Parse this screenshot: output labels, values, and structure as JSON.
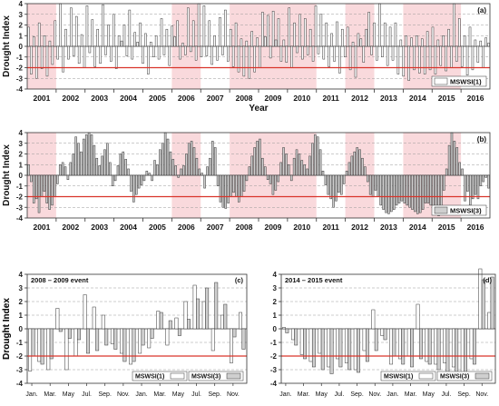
{
  "colors": {
    "shade": "#f9d9dc",
    "threshold": "#d9342b",
    "fill_series1": "#ffffff",
    "fill_series3": "#cfcfcf",
    "stroke": "#333333",
    "grid": "#9a9a9a"
  },
  "ylabel": "Drought Index",
  "xlabel": "Year",
  "chart_data": [
    {
      "id": "a",
      "type": "bar",
      "panel_tag": "(a)",
      "series_name": "MSWSI(1)",
      "fill": "white",
      "xlabel": "Year",
      "ylabel": "Drought Index",
      "ylim": [
        -4,
        4
      ],
      "yticks": [
        4,
        3,
        2,
        1,
        0,
        -1,
        -2,
        -3,
        -4
      ],
      "threshold": -2,
      "grid": true,
      "legend_position": "bottom-right",
      "year_labels": [
        "2001",
        "2002",
        "2003",
        "2004",
        "2005",
        "2006",
        "2007",
        "2008",
        "2009",
        "2010",
        "2011",
        "2012",
        "2013",
        "2014",
        "2015",
        "2016"
      ],
      "shaded_year_spans": [
        [
          0,
          1
        ],
        [
          5,
          6
        ],
        [
          7,
          10
        ],
        [
          11,
          12
        ],
        [
          13,
          15
        ]
      ],
      "values": [
        1.8,
        -2.6,
        0.9,
        -3.0,
        2.2,
        -2.1,
        1.0,
        -2.8,
        0.5,
        -1.7,
        2.4,
        -1.2,
        4.0,
        -2.4,
        1.6,
        -1.2,
        3.6,
        -0.9,
        2.8,
        -1.6,
        1.1,
        -2.0,
        3.8,
        -0.6,
        2.5,
        -1.9,
        1.6,
        -1.6,
        3.9,
        -0.8,
        2.0,
        -1.4,
        3.0,
        -2.1,
        1.0,
        0.5,
        2.0,
        -0.9,
        3.4,
        -1.2,
        1.3,
        0.4,
        2.2,
        -1.6,
        1.2,
        -2.6,
        0.4,
        -1.0,
        1.0,
        -1.2,
        2.6,
        -0.8,
        1.6,
        -1.8,
        1.9,
        0.9,
        2.4,
        -1.2,
        0.3,
        -0.8,
        3.6,
        -0.5,
        2.4,
        -1.3,
        4.0,
        -1.0,
        3.8,
        -0.9,
        2.4,
        -1.7,
        1.0,
        -1.3,
        2.7,
        -0.8,
        3.4,
        -1.4,
        1.6,
        -1.9,
        2.2,
        -2.4,
        0.7,
        -2.8,
        0.5,
        -3.0,
        1.4,
        -2.4,
        0.8,
        -2.0,
        3.2,
        0.9,
        2.9,
        -1.1,
        3.3,
        0.6,
        2.6,
        -1.4,
        0.6,
        -1.5,
        3.6,
        -2.0,
        2.2,
        -0.6,
        3.0,
        -1.2,
        2.6,
        -0.8,
        1.6,
        -1.4,
        3.8,
        -0.7,
        3.0,
        -1.2,
        2.2,
        -1.9,
        1.2,
        -1.4,
        2.3,
        -2.5,
        1.6,
        -1.0,
        1.8,
        -2.2,
        0.4,
        -2.9,
        1.2,
        0.7,
        -1.5,
        1.6,
        3.2,
        -0.8,
        2.2,
        -1.3,
        4.0,
        -1.0,
        2.2,
        -1.8,
        1.8,
        -1.3,
        2.2,
        -2.6,
        0.6,
        -2.8,
        1.0,
        -3.2,
        0.8,
        -2.2,
        1.0,
        -2.5,
        0.7,
        -2.6,
        1.4,
        -2.2,
        1.8,
        -2.6,
        0.6,
        -1.8,
        1.0,
        -2.3,
        1.6,
        -2.0,
        4.0,
        -1.4,
        2.6,
        -1.9,
        1.0,
        -2.7,
        1.8,
        -2.2,
        0.6,
        -1.5,
        0.5,
        -2.0,
        0.8,
        0.3
      ]
    },
    {
      "id": "b",
      "type": "bar",
      "panel_tag": "(b)",
      "series_name": "MSWSI(3)",
      "fill": "gray",
      "xlabel": "",
      "ylabel": "Drought Index",
      "ylim": [
        -4,
        4
      ],
      "yticks": [
        4,
        3,
        2,
        1,
        0,
        -1,
        -2,
        -3,
        -4
      ],
      "threshold": -2,
      "grid": true,
      "legend_position": "bottom-right",
      "year_labels": [
        "2001",
        "2002",
        "2003",
        "2004",
        "2005",
        "2006",
        "2007",
        "2008",
        "2009",
        "2010",
        "2011",
        "2012",
        "2013",
        "2014",
        "2015",
        "2016"
      ],
      "shaded_year_spans": [
        [
          0,
          1
        ],
        [
          5,
          6
        ],
        [
          7,
          10
        ],
        [
          11,
          12
        ],
        [
          13,
          15
        ]
      ],
      "values": [
        1.0,
        -0.6,
        -2.6,
        -2.2,
        -3.5,
        -2.0,
        -1.5,
        -2.6,
        -3.2,
        -2.8,
        -2.0,
        -0.8,
        1.0,
        1.2,
        0.8,
        -0.4,
        1.2,
        2.0,
        3.6,
        3.0,
        2.2,
        3.4,
        3.8,
        4.0,
        3.8,
        2.8,
        1.6,
        0.9,
        1.8,
        2.4,
        3.0,
        1.2,
        -1.0,
        -0.5,
        0.9,
        2.0,
        2.2,
        1.5,
        0.6,
        -1.5,
        -2.5,
        -1.8,
        -1.2,
        -0.9,
        -0.5,
        0.4,
        0.2,
        -0.5,
        1.4,
        1.0,
        2.4,
        3.0,
        4.0,
        3.4,
        2.2,
        1.5,
        0.9,
        -0.2,
        0.6,
        0.9,
        2.0,
        3.0,
        3.2,
        2.6,
        1.6,
        0.6,
        0.2,
        -1.2,
        0.8,
        1.6,
        3.2,
        2.6,
        -1.0,
        -2.5,
        -3.0,
        -3.1,
        -2.6,
        -2.0,
        -1.6,
        -2.0,
        -2.5,
        -2.0,
        -1.5,
        -0.5,
        0.8,
        1.8,
        2.6,
        3.2,
        3.4,
        1.6,
        0.8,
        -0.4,
        -0.8,
        -1.8,
        -1.4,
        -0.6,
        1.2,
        2.6,
        2.0,
        1.0,
        -0.5,
        1.6,
        2.4,
        2.0,
        1.4,
        1.0,
        0.6,
        1.8,
        3.0,
        3.8,
        3.6,
        2.4,
        0.4,
        -0.9,
        -1.8,
        -2.2,
        -3.0,
        -2.4,
        -1.6,
        -1.8,
        -0.8,
        0.4,
        1.2,
        1.8,
        2.2,
        2.6,
        2.4,
        1.6,
        0.8,
        -0.6,
        -1.8,
        -2.0,
        -1.4,
        -2.0,
        -2.8,
        -3.2,
        -3.5,
        -3.6,
        -3.4,
        -3.2,
        -2.8,
        -2.6,
        -2.4,
        -2.6,
        -2.8,
        -3.0,
        -3.2,
        -3.4,
        -3.6,
        -3.5,
        -3.2,
        -2.6,
        -2.6,
        -2.8,
        -3.4,
        -3.6,
        -3.8,
        -3.2,
        -1.4,
        0.6,
        2.8,
        4.0,
        3.2,
        2.6,
        1.2,
        0.6,
        -2.4,
        -1.5,
        -2.8,
        -2.2,
        -1.8,
        -2.2,
        -1.0,
        -0.6,
        -0.2,
        -1.2
      ]
    },
    {
      "id": "c",
      "type": "bar",
      "event_title": "2008 – 2009 event",
      "panel_tag": "(c)",
      "xlabel": "",
      "ylabel": "Drought Index",
      "ylim": [
        -4,
        4
      ],
      "yticks": [
        4,
        3,
        2,
        1,
        0,
        -1,
        -2,
        -3,
        -4
      ],
      "threshold": -2,
      "grid": true,
      "legend_position": "bottom-right",
      "month_labels": [
        "Jan.",
        "Mar.",
        "May",
        "Jul.",
        "Sep.",
        "Nov.",
        "Jan.",
        "Mar.",
        "May",
        "Jul.",
        "Sep.",
        "Nov."
      ],
      "series": [
        {
          "name": "MSWSI(1)",
          "fill": "white",
          "values": [
            -3.1,
            -2.4,
            -3.0,
            1.5,
            -3.0,
            -2.0,
            2.5,
            1.6,
            1.0,
            -1.1,
            -1.8,
            -2.6,
            -1.8,
            -1.4,
            1.3,
            -1.2,
            0.8,
            2.0,
            3.2,
            2.0,
            -1.6,
            1.0,
            -2.5,
            1.2
          ]
        },
        {
          "name": "MSWSI(3)",
          "fill": "gray",
          "values": [
            -2.0,
            -2.6,
            -2.2,
            -0.2,
            -0.7,
            -0.8,
            -1.8,
            -1.6,
            -1.2,
            -1.5,
            -2.4,
            -2.4,
            -1.2,
            -0.7,
            1.2,
            0.6,
            -0.5,
            0.7,
            2.2,
            3.0,
            3.4,
            1.8,
            -0.6,
            -1.5
          ]
        }
      ]
    },
    {
      "id": "d",
      "type": "bar",
      "event_title": "2014 – 2015 event",
      "panel_tag": "(d)",
      "xlabel": "",
      "ylabel": "Drought Index",
      "ylim": [
        -4,
        4
      ],
      "yticks": [
        4,
        3,
        2,
        1,
        0,
        -1,
        -2,
        -3,
        -4
      ],
      "threshold": -2,
      "grid": true,
      "legend_position": "bottom-right",
      "month_labels": [
        "Jan.",
        "Mar.",
        "May",
        "Jul.",
        "Sep.",
        "Nov.",
        "Jan.",
        "Mar.",
        "May",
        "Jul.",
        "Sep.",
        "Nov."
      ],
      "series": [
        {
          "name": "MSWSI(1)",
          "fill": "white",
          "values": [
            0.1,
            -0.8,
            -1.9,
            -2.4,
            -1.8,
            -2.8,
            -2.2,
            -2.5,
            -3.0,
            -1.6,
            1.4,
            -0.5,
            -2.6,
            -2.2,
            -2.0,
            1.8,
            -2.4,
            -2.6,
            -2.5,
            -2.8,
            -3.2,
            -2.2,
            4.4,
            1.2
          ]
        },
        {
          "name": "MSWSI(3)",
          "fill": "gray",
          "values": [
            -0.3,
            -1.2,
            -2.2,
            -2.8,
            -3.0,
            -3.3,
            -2.8,
            -3.0,
            -3.2,
            -2.4,
            -1.6,
            -0.8,
            -2.0,
            -2.6,
            -2.8,
            -2.2,
            -2.6,
            -3.0,
            -3.2,
            -3.4,
            -3.2,
            -2.6,
            3.6,
            3.8
          ]
        }
      ]
    }
  ]
}
